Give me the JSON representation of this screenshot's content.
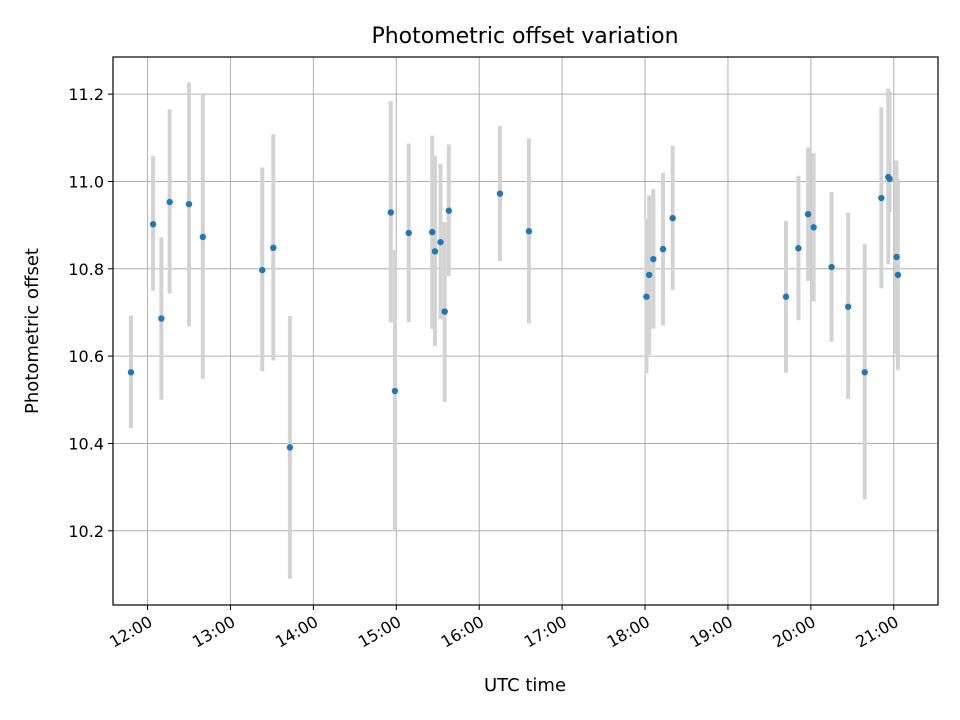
{
  "chart_data": {
    "type": "scatter",
    "title": "Photometric offset variation",
    "xlabel": "UTC time",
    "ylabel": "Photometric offset",
    "x_tick_labels": [
      "12:00",
      "13:00",
      "14:00",
      "15:00",
      "16:00",
      "17:00",
      "18:00",
      "19:00",
      "20:00",
      "21:00"
    ],
    "y_tick_labels": [
      "10.2",
      "10.4",
      "10.6",
      "10.8",
      "11.0",
      "11.2"
    ],
    "xlim": [
      "11:35",
      "21:32"
    ],
    "ylim": [
      10.03,
      11.285
    ],
    "grid": true,
    "colors": {
      "point": "#1f77b4",
      "errorbar": "#d3d3d3",
      "grid": "#b0b0b0"
    },
    "points": [
      {
        "x": "11:48",
        "y": 10.563,
        "low": 10.435,
        "high": 10.693
      },
      {
        "x": "12:04",
        "y": 10.902,
        "low": 10.75,
        "high": 11.058
      },
      {
        "x": "12:10",
        "y": 10.686,
        "low": 10.5,
        "high": 10.872
      },
      {
        "x": "12:16",
        "y": 10.953,
        "low": 10.743,
        "high": 11.165
      },
      {
        "x": "12:30",
        "y": 10.948,
        "low": 10.668,
        "high": 11.227
      },
      {
        "x": "12:40",
        "y": 10.873,
        "low": 10.548,
        "high": 11.198
      },
      {
        "x": "13:23",
        "y": 10.797,
        "low": 10.565,
        "high": 11.032
      },
      {
        "x": "13:31",
        "y": 10.848,
        "low": 10.59,
        "high": 11.108
      },
      {
        "x": "13:43",
        "y": 10.391,
        "low": 10.09,
        "high": 10.692
      },
      {
        "x": "14:56",
        "y": 10.929,
        "low": 10.677,
        "high": 11.184
      },
      {
        "x": "14:59",
        "y": 10.52,
        "low": 10.2,
        "high": 10.843
      },
      {
        "x": "15:09",
        "y": 10.882,
        "low": 10.678,
        "high": 11.087
      },
      {
        "x": "15:26",
        "y": 10.884,
        "low": 10.662,
        "high": 11.105
      },
      {
        "x": "15:28",
        "y": 10.84,
        "low": 10.623,
        "high": 11.058
      },
      {
        "x": "15:32",
        "y": 10.861,
        "low": 10.685,
        "high": 11.04
      },
      {
        "x": "15:35",
        "y": 10.702,
        "low": 10.495,
        "high": 10.907
      },
      {
        "x": "15:38",
        "y": 10.933,
        "low": 10.783,
        "high": 11.085
      },
      {
        "x": "16:15",
        "y": 10.972,
        "low": 10.818,
        "high": 11.127
      },
      {
        "x": "16:36",
        "y": 10.886,
        "low": 10.675,
        "high": 11.098
      },
      {
        "x": "18:01",
        "y": 10.736,
        "low": 10.56,
        "high": 10.915
      },
      {
        "x": "18:03",
        "y": 10.786,
        "low": 10.603,
        "high": 10.968
      },
      {
        "x": "18:06",
        "y": 10.822,
        "low": 10.663,
        "high": 10.983
      },
      {
        "x": "18:13",
        "y": 10.845,
        "low": 10.67,
        "high": 11.02
      },
      {
        "x": "18:20",
        "y": 10.916,
        "low": 10.752,
        "high": 11.082
      },
      {
        "x": "19:42",
        "y": 10.736,
        "low": 10.562,
        "high": 10.91
      },
      {
        "x": "19:51",
        "y": 10.847,
        "low": 10.682,
        "high": 11.013
      },
      {
        "x": "19:58",
        "y": 10.925,
        "low": 10.772,
        "high": 11.078
      },
      {
        "x": "20:02",
        "y": 10.895,
        "low": 10.725,
        "high": 11.065
      },
      {
        "x": "20:15",
        "y": 10.804,
        "low": 10.633,
        "high": 10.976
      },
      {
        "x": "20:27",
        "y": 10.713,
        "low": 10.502,
        "high": 10.928
      },
      {
        "x": "20:39",
        "y": 10.563,
        "low": 10.272,
        "high": 10.857
      },
      {
        "x": "20:51",
        "y": 10.962,
        "low": 10.755,
        "high": 11.17
      },
      {
        "x": "20:56",
        "y": 11.01,
        "low": 10.81,
        "high": 11.213
      },
      {
        "x": "20:57",
        "y": 11.006,
        "low": 10.93,
        "high": 11.205
      },
      {
        "x": "21:02",
        "y": 10.827,
        "low": 10.605,
        "high": 11.048
      },
      {
        "x": "21:03",
        "y": 10.786,
        "low": 10.568,
        "high": 11.005
      }
    ]
  }
}
